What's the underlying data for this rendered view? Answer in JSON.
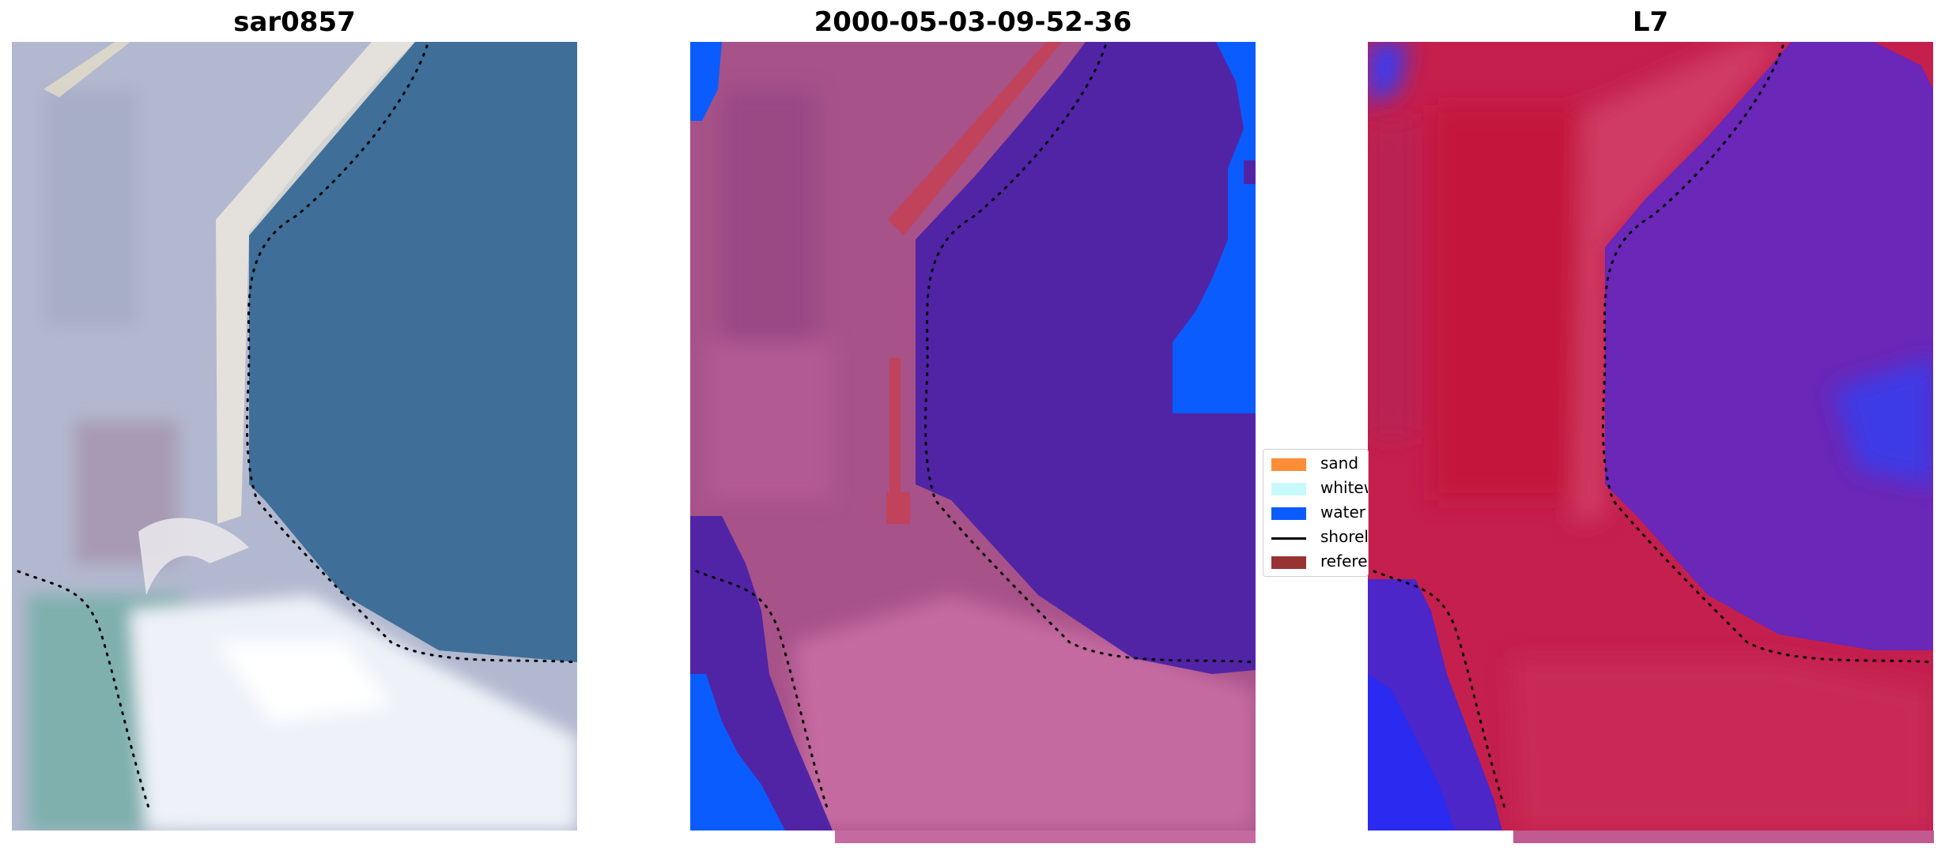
{
  "panels": [
    {
      "title": "sar0857"
    },
    {
      "title": "2000-05-03-09-52-36"
    },
    {
      "title": "L7"
    }
  ],
  "legend": {
    "items": [
      {
        "label": "sand",
        "color": "#ff8c37",
        "kind": "patch"
      },
      {
        "label": "whitewater",
        "color": "#c8fafa",
        "kind": "patch"
      },
      {
        "label": "water",
        "color": "#0a5cff",
        "kind": "patch"
      },
      {
        "label": "shoreline",
        "color": "#000000",
        "kind": "line"
      },
      {
        "label": "reference",
        "color": "#993333",
        "kind": "patch"
      }
    ]
  },
  "colors": {
    "land_rgb": "#b4bad0",
    "water_rgb": "#3f6f98",
    "surf_rgb": "#eef2f8",
    "shallow_rgb": "#7fb2b0",
    "seg_land": "#a75289",
    "seg_water": "#5124a6",
    "seg_bright_water": "#0a5cff",
    "seg_sand_strip": "#c44057",
    "seg_lower": "#c46aa0",
    "l7_land": "#c01b48",
    "l7_water": "#6a27b8",
    "l7_blue": "#3a3aee"
  }
}
